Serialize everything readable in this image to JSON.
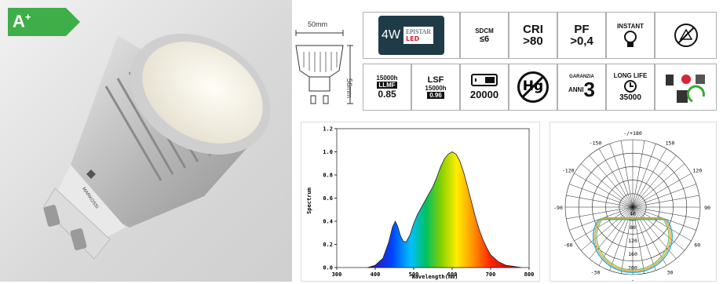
{
  "energy_badge": {
    "class_label": "A",
    "class_sup": "+"
  },
  "product": {
    "brand_text": "MARKOSSI"
  },
  "dimensions": {
    "width_label": "50mm",
    "height_label": "56mm"
  },
  "icons": {
    "wattage": "4W",
    "chip_brand": "EPISTAR",
    "chip_type": "LED",
    "sdcm_label": "SDCM",
    "sdcm_value": "≤6",
    "cri_label": "CRI",
    "cri_value": ">80",
    "pf_label": "PF",
    "pf_value": ">0,4",
    "instant_label": "INSTANT",
    "llmf_hours": "15000h",
    "llmf_label": "LLMF",
    "llmf_value": "0.85",
    "lsf_label": "LSF",
    "lsf_hours": "15000h",
    "lsf_value": "0.96",
    "switch_cycles": "20000",
    "mercury_label": "Hg",
    "warranty_label": "GARANZIA",
    "warranty_unit": "ANNI",
    "warranty_value": "3",
    "long_life_label": "LONG LIFE",
    "long_life_hours": "35000"
  },
  "chart_data": [
    {
      "type": "area",
      "xlabel": "Wavelength(nm)",
      "ylabel": "Spectrum",
      "xlim": [
        300,
        800
      ],
      "ylim": [
        0,
        1.2
      ],
      "xticks": [
        "300",
        "400",
        "500",
        "600",
        "700",
        "800"
      ],
      "yticks": [
        "0.0",
        "0.2",
        "0.4",
        "0.6",
        "0.8",
        "1.0",
        "1.2"
      ],
      "x": [
        380,
        400,
        420,
        435,
        445,
        452,
        458,
        465,
        472,
        480,
        490,
        500,
        510,
        520,
        530,
        540,
        550,
        560,
        570,
        580,
        590,
        600,
        610,
        620,
        630,
        640,
        650,
        660,
        670,
        680,
        690,
        700,
        720,
        740,
        760,
        780
      ],
      "values": [
        0.0,
        0.02,
        0.08,
        0.22,
        0.35,
        0.4,
        0.36,
        0.28,
        0.23,
        0.22,
        0.28,
        0.38,
        0.46,
        0.52,
        0.58,
        0.64,
        0.7,
        0.78,
        0.87,
        0.94,
        0.98,
        1.0,
        0.98,
        0.92,
        0.82,
        0.7,
        0.57,
        0.44,
        0.33,
        0.24,
        0.17,
        0.11,
        0.05,
        0.02,
        0.01,
        0.0
      ]
    },
    {
      "type": "polar",
      "angle_labels": [
        "-/+180",
        "150",
        "120",
        "90",
        "60",
        "30",
        "0",
        "-30",
        "-60",
        "-90",
        "-120",
        "-150"
      ],
      "radial_labels": [
        "40",
        "80",
        "120",
        "160",
        "200"
      ]
    }
  ],
  "colors": {
    "badge_green": "#3fae49",
    "label_bg": "#1f3b48"
  }
}
